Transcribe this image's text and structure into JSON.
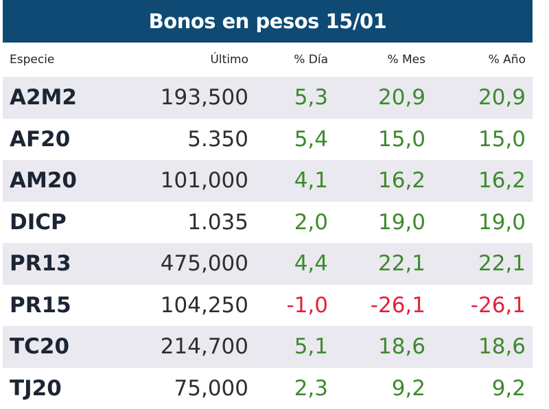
{
  "header": {
    "title": "Bonos en pesos 15/01"
  },
  "table": {
    "columns": [
      "Especie",
      "Último",
      "% Día",
      "% Mes",
      "% Año"
    ],
    "rows": [
      [
        "A2M2",
        "193,500",
        "5,3",
        "20,9",
        "20,9"
      ],
      [
        "AF20",
        "5.350",
        "5,4",
        "15,0",
        "15,0"
      ],
      [
        "AM20",
        "101,000",
        "4,1",
        "16,2",
        "16,2"
      ],
      [
        "DICP",
        "1.035",
        "2,0",
        "19,0",
        "19,0"
      ],
      [
        "PR13",
        "475,000",
        "4,4",
        "22,1",
        "22,1"
      ],
      [
        "PR15",
        "104,250",
        "-1,0",
        "-26,1",
        "-26,1"
      ],
      [
        "TC20",
        "214,700",
        "5,1",
        "18,6",
        "18,6"
      ],
      [
        "TJ20",
        "75,000",
        "2,3",
        "9,2",
        "9,2"
      ]
    ]
  }
}
